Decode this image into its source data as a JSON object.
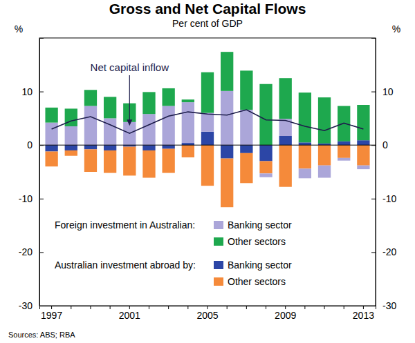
{
  "chart_data": {
    "type": "bar",
    "title": "Gross and Net Capital Flows",
    "subtitle": "Per cent of GDP",
    "ylabel": "%",
    "source": "Sources: ABS; RBA",
    "categories": [
      "1997",
      null,
      null,
      null,
      "2001",
      null,
      null,
      null,
      "2005",
      null,
      null,
      null,
      "2009",
      null,
      null,
      null,
      "2013"
    ],
    "series": [
      {
        "name": "Banking sector",
        "group": "Foreign investment in Australian:",
        "color": "#aba6d9",
        "values": [
          4.2,
          3.5,
          7.3,
          5.0,
          4.3,
          5.8,
          7.3,
          7.6,
          3.5,
          10.1,
          6.6,
          -0.7,
          3.2,
          -1.8,
          -2.3,
          -0.5,
          -0.7
        ]
      },
      {
        "name": "Other sectors",
        "group": "Foreign investment in Australian:",
        "color": "#1ea84e",
        "values": [
          2.8,
          3.3,
          3.0,
          4.0,
          3.5,
          4.1,
          3.3,
          0.5,
          7.6,
          7.3,
          7.3,
          11.4,
          7.6,
          9.3,
          8.6,
          6.6,
          6.6
        ]
      },
      {
        "name": "Banking sector",
        "group": "Australian investment abroad by:",
        "color": "#2c46a6",
        "values": [
          -1.2,
          -1.0,
          -0.8,
          -1.0,
          -0.3,
          -1.0,
          -0.7,
          0.4,
          2.5,
          -2.5,
          -1.5,
          -3.0,
          1.7,
          0.5,
          0.3,
          0.7,
          0.9
        ]
      },
      {
        "name": "Other sectors",
        "group": "Australian investment abroad by:",
        "color": "#f58a3a",
        "values": [
          -2.8,
          -1.0,
          -4.2,
          -4.2,
          -5.4,
          -5.1,
          -4.5,
          -2.3,
          -7.6,
          -9.1,
          -5.6,
          -2.3,
          -7.8,
          -4.4,
          -3.8,
          -2.4,
          -3.8
        ]
      },
      {
        "name": "Net capital inflow",
        "type": "line",
        "color": "#1d1d4b",
        "values": [
          3.0,
          4.5,
          5.3,
          3.8,
          2.2,
          3.8,
          5.4,
          6.2,
          5.8,
          5.6,
          6.6,
          4.7,
          4.6,
          3.5,
          2.7,
          4.1,
          3.0
        ]
      }
    ],
    "stacked": true,
    "ylim": [
      -30,
      20
    ],
    "yticks": [
      -30,
      -20,
      -10,
      0,
      10
    ],
    "grid": false,
    "legend": "lower left"
  }
}
